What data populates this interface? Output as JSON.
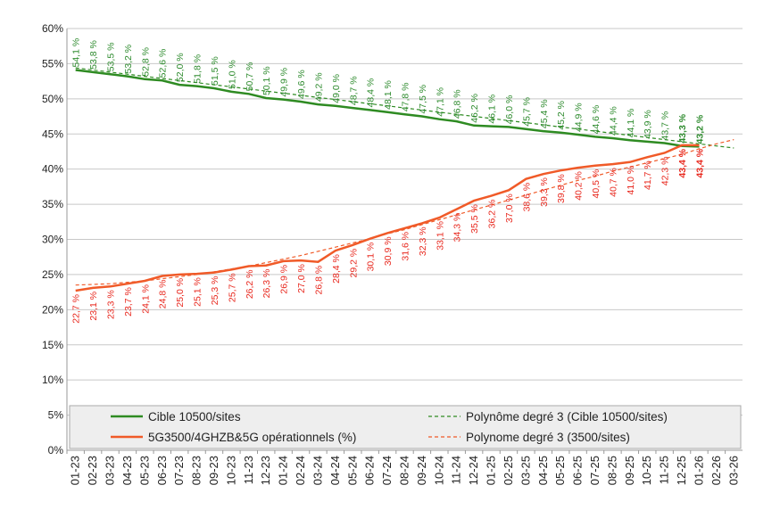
{
  "chart_data": {
    "type": "line",
    "categories": [
      "01-23",
      "02-23",
      "03-23",
      "04-23",
      "05-23",
      "06-23",
      "07-23",
      "08-23",
      "09-23",
      "10-23",
      "11-23",
      "12-23",
      "01-24",
      "02-24",
      "03-24",
      "04-24",
      "05-24",
      "06-24",
      "07-24",
      "08-24",
      "09-24",
      "10-24",
      "11-24",
      "12-24",
      "01-25",
      "02-25",
      "03-25",
      "04-25",
      "05-25",
      "06-25",
      "07-25",
      "08-25",
      "09-25",
      "10-25",
      "11-25",
      "12-25",
      "01-26",
      "02-26",
      "03-26"
    ],
    "series": [
      {
        "name": "Cible 10500/sites",
        "color": "#2e8b22",
        "label_color": "#2e8b2e",
        "values": [
          54.1,
          53.8,
          53.5,
          53.2,
          52.8,
          52.6,
          52.0,
          51.8,
          51.5,
          51.0,
          50.7,
          50.1,
          49.9,
          49.6,
          49.2,
          49.0,
          48.7,
          48.4,
          48.1,
          47.8,
          47.5,
          47.1,
          46.8,
          46.2,
          46.1,
          46.0,
          45.7,
          45.4,
          45.2,
          44.9,
          44.6,
          44.4,
          44.1,
          43.9,
          43.7,
          43.3,
          43.2,
          null,
          null
        ],
        "value_labels": [
          "54,1 %",
          "53,8 %",
          "53,5 %",
          "53,2 %",
          "52,8 %",
          "52,6 %",
          "52,0 %",
          "51,8 %",
          "51,5 %",
          "51,0 %",
          "50,7 %",
          "50,1 %",
          "49,9 %",
          "49,6 %",
          "49,2 %",
          "49,0 %",
          "48,7 %",
          "48,4 %",
          "48,1 %",
          "47,8 %",
          "47,5 %",
          "47,1 %",
          "46,8 %",
          "46,2 %",
          "46,1 %",
          "46,0 %",
          "45,7 %",
          "45,4 %",
          "45,2 %",
          "44,9 %",
          "44,6 %",
          "44,4 %",
          "44,1 %",
          "43,9 %",
          "43,7 %",
          "43,3 %",
          "43,2 %",
          null,
          null
        ],
        "label_side": "above"
      },
      {
        "name": "5G3500/4GHZB&5G opérationnels (%)",
        "color": "#f05a28",
        "label_color": "#e8281e",
        "values": [
          22.7,
          23.1,
          23.3,
          23.7,
          24.1,
          24.8,
          25.0,
          25.1,
          25.3,
          25.7,
          26.2,
          26.3,
          26.9,
          27.0,
          26.8,
          28.4,
          29.2,
          30.1,
          30.9,
          31.6,
          32.3,
          33.1,
          34.3,
          35.5,
          36.2,
          37.0,
          38.6,
          39.3,
          39.8,
          40.2,
          40.5,
          40.7,
          41.0,
          41.7,
          42.3,
          43.4,
          43.4,
          null,
          null
        ],
        "value_labels": [
          "22,7 %",
          "23,1 %",
          "23,3 %",
          "23,7 %",
          "24,1 %",
          "24,8 %",
          "25,0 %",
          "25,1 %",
          "25,3 %",
          "25,7 %",
          "26,2 %",
          "26,3 %",
          "26,9 %",
          "27,0 %",
          "26,8 %",
          "28,4 %",
          "29,2 %",
          "30,1 %",
          "30,9 %",
          "31,6 %",
          "32,3 %",
          "33,1 %",
          "34,3 %",
          "35,5 %",
          "36,2 %",
          "37,0 %",
          "38,6 %",
          "39,3 %",
          "39,8 %",
          "40,2 %",
          "40,5 %",
          "40,7 %",
          "41,0 %",
          "41,7 %",
          "42,3 %",
          "43,4 %",
          "43,4 %",
          null,
          null
        ],
        "label_side": "below"
      },
      {
        "name": "Polynôme degré 3 (Cible 10500/sites)",
        "color": "#2e8b22",
        "dashed": true,
        "values": [
          54.4,
          54.1,
          53.8,
          53.5,
          53.2,
          52.9,
          52.6,
          52.3,
          52.0,
          51.7,
          51.4,
          51.1,
          50.8,
          50.5,
          50.2,
          49.9,
          49.6,
          49.3,
          49.0,
          48.7,
          48.4,
          48.1,
          47.8,
          47.5,
          47.2,
          46.9,
          46.6,
          46.3,
          46.0,
          45.7,
          45.4,
          45.1,
          44.8,
          44.5,
          44.2,
          43.9,
          43.6,
          43.3,
          43.0
        ]
      },
      {
        "name": "Polynome degré 3 (3500/sites)",
        "color": "#f05a28",
        "dashed": true,
        "values": [
          23.5,
          23.6,
          23.7,
          23.9,
          24.1,
          24.4,
          24.7,
          25.0,
          25.4,
          25.8,
          26.2,
          26.7,
          27.2,
          27.7,
          28.3,
          28.9,
          29.5,
          30.1,
          30.8,
          31.4,
          32.1,
          32.8,
          33.5,
          34.2,
          34.9,
          35.6,
          36.3,
          37.0,
          37.7,
          38.4,
          39.0,
          39.7,
          40.3,
          40.9,
          41.5,
          42.1,
          42.9,
          43.6,
          44.2
        ]
      }
    ],
    "ylim": [
      0,
      60
    ],
    "yticks": [
      {
        "value": 0,
        "label": "0%"
      },
      {
        "value": 5,
        "label": "5%"
      },
      {
        "value": 10,
        "label": "10%"
      },
      {
        "value": 15,
        "label": "15%"
      },
      {
        "value": 20,
        "label": "20%"
      },
      {
        "value": 25,
        "label": "25%"
      },
      {
        "value": 30,
        "label": "30%"
      },
      {
        "value": 35,
        "label": "35%"
      },
      {
        "value": 40,
        "label": "40%"
      },
      {
        "value": 45,
        "label": "45%"
      },
      {
        "value": 50,
        "label": "50%"
      },
      {
        "value": 55,
        "label": "55%"
      },
      {
        "value": 60,
        "label": "60%"
      }
    ],
    "grid": true,
    "legend": "bottom"
  }
}
